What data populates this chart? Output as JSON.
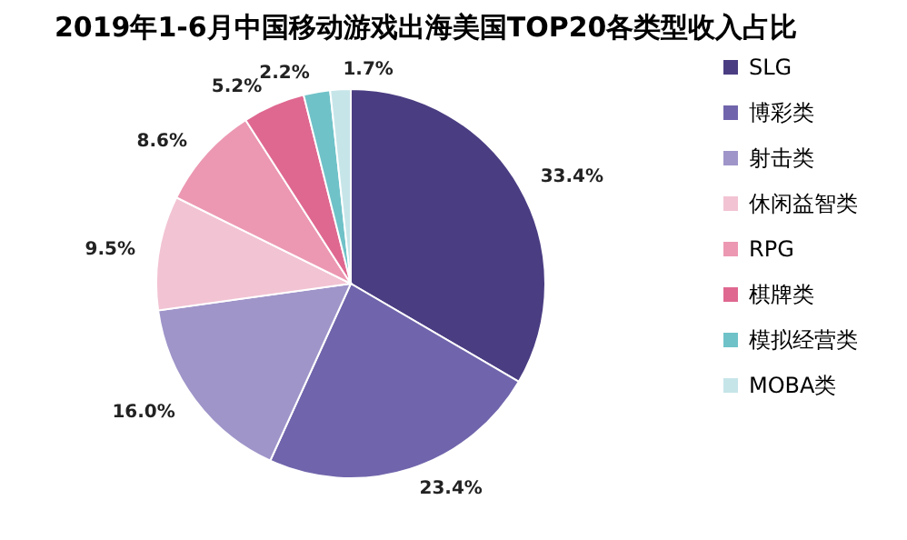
{
  "chart_data": {
    "type": "pie",
    "title": "2019年1-6月中国移动游戏出海美国TOP20各类型收入占比",
    "categories": [
      "SLG",
      "博彩类",
      "射击类",
      "休闲益智类",
      "RPG",
      "棋牌类",
      "模拟经营类",
      "MOBA类"
    ],
    "values": [
      33.4,
      23.4,
      16.0,
      9.5,
      8.6,
      5.2,
      2.2,
      1.7
    ],
    "value_labels": [
      "33.4%",
      "23.4%",
      "16.0%",
      "9.5%",
      "8.6%",
      "5.2%",
      "2.2%",
      "1.7%"
    ],
    "colors": [
      "#4b3d82",
      "#7065ac",
      "#9f95c9",
      "#f2c3d3",
      "#ec98b2",
      "#df6890",
      "#6fc2c8",
      "#c6e5e9"
    ],
    "legend": "right"
  }
}
